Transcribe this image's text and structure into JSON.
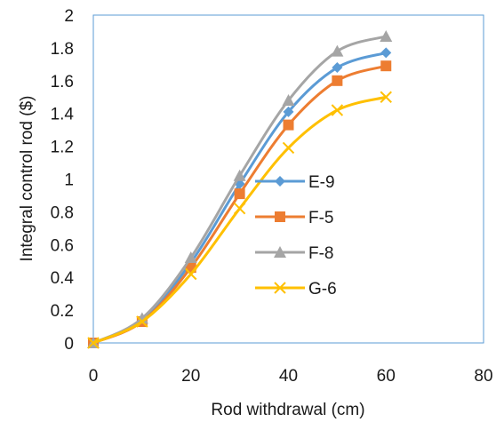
{
  "chart_data": {
    "type": "line",
    "title": "",
    "xlabel": "Rod withdrawal (cm)",
    "ylabel": "Integral control rod ($)",
    "xlim": [
      0,
      80
    ],
    "ylim": [
      0,
      2
    ],
    "xticks": [
      "0",
      "20",
      "40",
      "60",
      "80"
    ],
    "yticks": [
      "0",
      "0.2",
      "0.4",
      "0.6",
      "0.8",
      "1",
      "1.2",
      "1.4",
      "1.6",
      "1.8",
      "2"
    ],
    "grid": false,
    "legend_position": "center-right",
    "x": [
      0,
      10,
      20,
      30,
      40,
      50,
      60
    ],
    "series": [
      {
        "name": "E-9",
        "color": "#5b9bd5",
        "marker": "diamond",
        "values": [
          0.0,
          0.14,
          0.49,
          0.97,
          1.41,
          1.68,
          1.77
        ]
      },
      {
        "name": "F-5",
        "color": "#ed7d31",
        "marker": "square",
        "values": [
          0.0,
          0.13,
          0.46,
          0.91,
          1.33,
          1.6,
          1.69
        ]
      },
      {
        "name": "F-8",
        "color": "#a5a5a5",
        "marker": "triangle",
        "values": [
          0.0,
          0.15,
          0.52,
          1.02,
          1.48,
          1.78,
          1.87
        ]
      },
      {
        "name": "G-6",
        "color": "#ffc000",
        "marker": "x",
        "values": [
          0.0,
          0.13,
          0.42,
          0.82,
          1.19,
          1.42,
          1.5
        ]
      }
    ]
  }
}
